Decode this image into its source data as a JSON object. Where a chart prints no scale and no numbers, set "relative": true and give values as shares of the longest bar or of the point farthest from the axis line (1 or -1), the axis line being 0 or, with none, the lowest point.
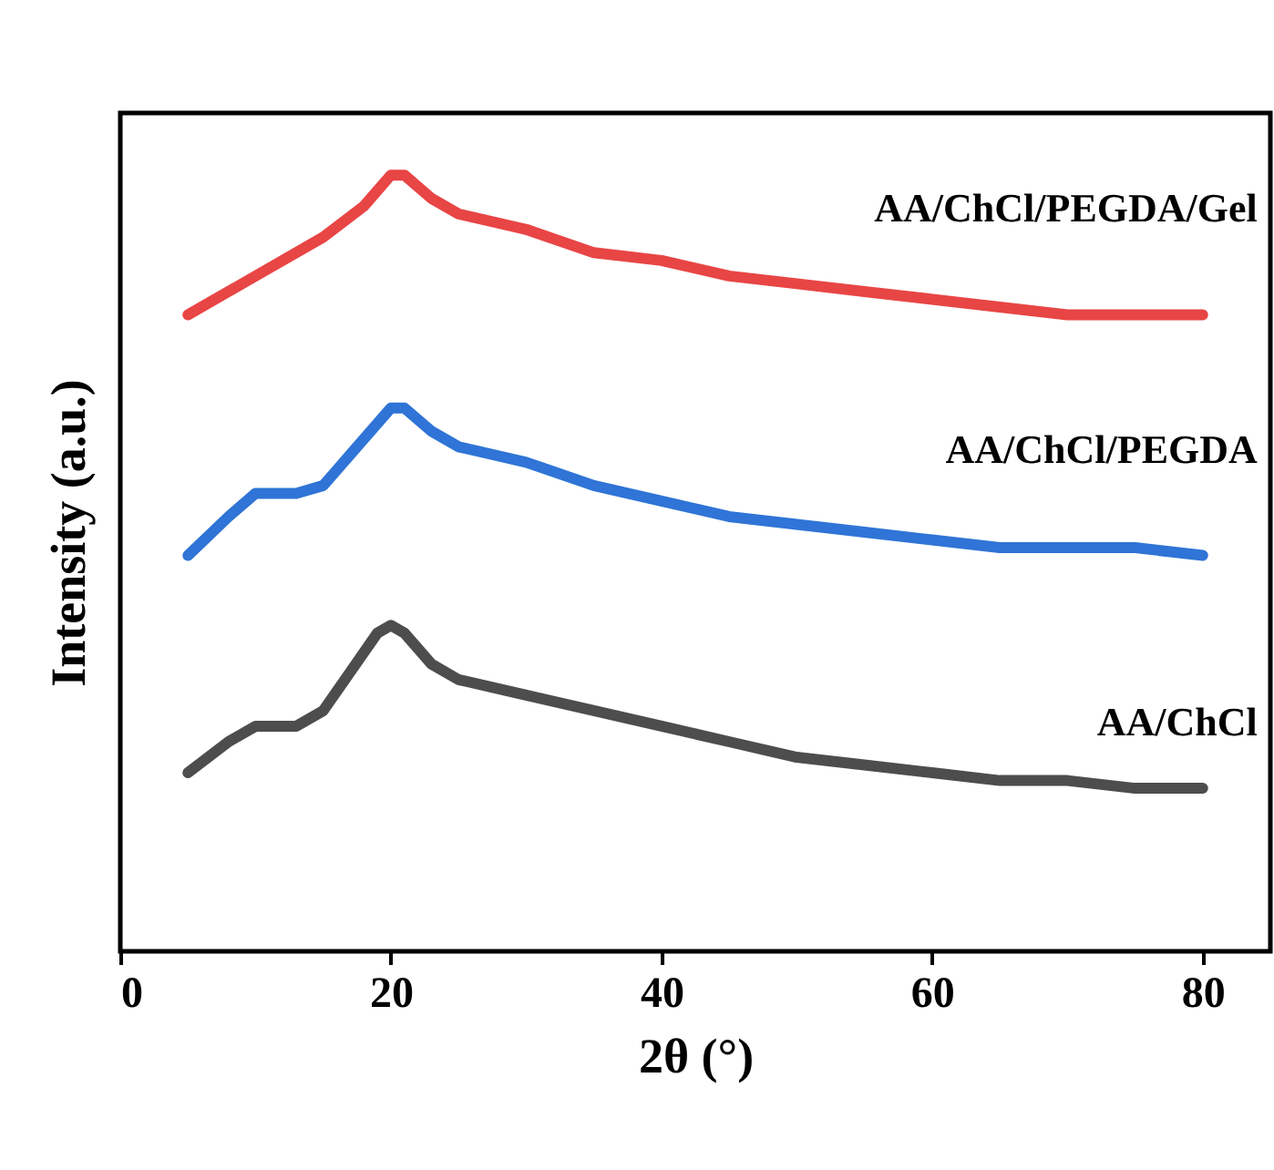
{
  "chart_data": {
    "type": "line",
    "relative": true,
    "xlabel": "2θ (°)",
    "ylabel": "Intensity (a.u.)",
    "xlim": [
      0,
      85
    ],
    "xticks": [
      0,
      20,
      40,
      60,
      80
    ],
    "grid": false,
    "legend": false,
    "series": [
      {
        "name": "AA/ChCl/PEGDA/Gel",
        "color": "#e84545",
        "x": [
          5,
          10,
          15,
          18,
          20,
          21,
          23,
          25,
          30,
          35,
          40,
          45,
          50,
          55,
          60,
          65,
          70,
          75,
          80
        ],
        "values": [
          0.82,
          0.87,
          0.92,
          0.96,
          1.0,
          1.0,
          0.97,
          0.95,
          0.93,
          0.9,
          0.89,
          0.87,
          0.86,
          0.85,
          0.84,
          0.83,
          0.82,
          0.82,
          0.82
        ]
      },
      {
        "name": "AA/ChCl/PEGDA",
        "color": "#2f74d6",
        "x": [
          5,
          8,
          10,
          13,
          15,
          17,
          19,
          20,
          21,
          23,
          25,
          30,
          35,
          40,
          45,
          50,
          55,
          60,
          65,
          70,
          75,
          80
        ],
        "values": [
          0.51,
          0.56,
          0.59,
          0.59,
          0.6,
          0.64,
          0.68,
          0.7,
          0.7,
          0.67,
          0.65,
          0.63,
          0.6,
          0.58,
          0.56,
          0.55,
          0.54,
          0.53,
          0.52,
          0.52,
          0.52,
          0.51
        ]
      },
      {
        "name": "AA/ChCl",
        "color": "#4d4d4d",
        "x": [
          5,
          8,
          10,
          13,
          15,
          17,
          19,
          20,
          21,
          23,
          25,
          30,
          35,
          40,
          45,
          50,
          55,
          60,
          65,
          70,
          75,
          80
        ],
        "values": [
          0.23,
          0.27,
          0.29,
          0.29,
          0.31,
          0.36,
          0.41,
          0.42,
          0.41,
          0.37,
          0.35,
          0.33,
          0.31,
          0.29,
          0.27,
          0.25,
          0.24,
          0.23,
          0.22,
          0.22,
          0.21,
          0.21
        ]
      }
    ]
  }
}
